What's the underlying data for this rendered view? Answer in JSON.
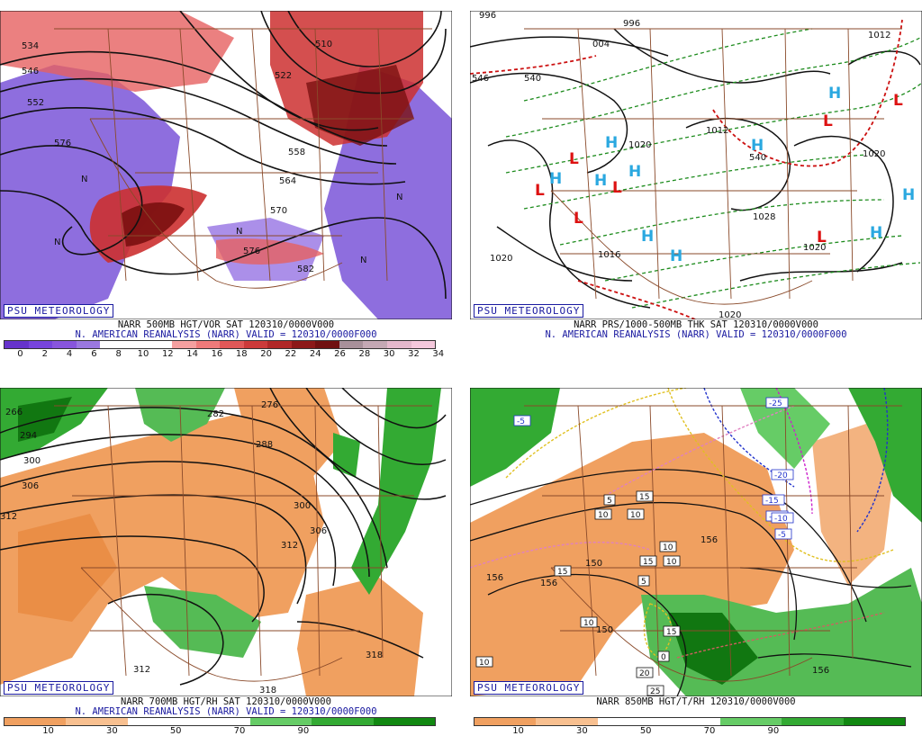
{
  "badge": "PSU METEOROLOGY",
  "panels": {
    "p1": {
      "caption": "NARR 500MB HGT/VOR SAT 120310/0000V000",
      "valid": "N. AMERICAN REANALYSIS (NARR) VALID = 120310/0000F000",
      "colorbar_ticks": [
        "0",
        "2",
        "4",
        "6",
        "8",
        "10",
        "12",
        "14",
        "16",
        "18",
        "20",
        "22",
        "24",
        "26",
        "28",
        "30",
        "32",
        "34"
      ],
      "colorbar_colors": [
        "#6633cc",
        "#7744dd",
        "#8855dd",
        "#9a78e0",
        "#ffffff",
        "#ffffff",
        "#ffffff",
        "#f4a0a0",
        "#ee7a7a",
        "#e05858",
        "#cc3a3a",
        "#b02828",
        "#8c1818",
        "#701010",
        "#a8909a",
        "#c4a8b4",
        "#e4b8cc",
        "#f4c8dc"
      ],
      "contour_labels": [
        "510",
        "522",
        "534",
        "546",
        "552",
        "558",
        "564",
        "570",
        "576",
        "582",
        "576"
      ],
      "marks": [
        "N",
        "N",
        "N",
        "N",
        "N"
      ]
    },
    "p2": {
      "caption": "NARR PRS/1000-500MB THK SAT 120310/0000V000",
      "valid": "N. AMERICAN REANALYSIS (NARR) VALID = 120310/0000F000",
      "contour_labels": [
        "996",
        "004",
        "1020",
        "1020",
        "1020",
        "1020",
        "1016",
        "1020",
        "1028",
        "1012",
        "540",
        "540",
        "546",
        "996",
        "1012"
      ],
      "highs": [
        "H",
        "H",
        "H",
        "H",
        "H",
        "H",
        "H",
        "H",
        "H",
        "H"
      ],
      "lows": [
        "L",
        "L",
        "L",
        "L",
        "L",
        "L",
        "L"
      ]
    },
    "p3": {
      "caption": "NARR 700MB HGT/RH SAT 120310/0000V000",
      "valid": "N. AMERICAN REANALYSIS (NARR) VALID = 120310/0000F000",
      "colorbar_ticks": [
        "10",
        "30",
        "50",
        "70",
        "90"
      ],
      "colorbar_colors": [
        "#f0a060",
        "#f8c090",
        "#ffffff",
        "#ffffff",
        "#66cc66",
        "#33aa33",
        "#118811"
      ],
      "contour_labels": [
        "266",
        "294",
        "300",
        "306",
        "312",
        "282",
        "276",
        "288",
        "300",
        "306",
        "312",
        "312",
        "318",
        "318"
      ]
    },
    "p4": {
      "caption": "NARR 850MB HGT/T/RH 120310/0000V000",
      "colorbar_ticks": [
        "10",
        "30",
        "50",
        "70",
        "90"
      ],
      "colorbar_colors": [
        "#f0a060",
        "#f8c090",
        "#ffffff",
        "#ffffff",
        "#66cc66",
        "#33aa33",
        "#118811"
      ],
      "contour_labels": [
        "156",
        "156",
        "150",
        "156",
        "150",
        "156"
      ],
      "temp_labels": [
        "-5",
        "-25",
        "-20",
        "-15",
        "-10",
        "-5",
        "5",
        "10",
        "15",
        "15",
        "10",
        "10",
        "10",
        "10",
        "15",
        "20",
        "25",
        "10",
        "15",
        "-10",
        "0",
        "5"
      ]
    }
  }
}
